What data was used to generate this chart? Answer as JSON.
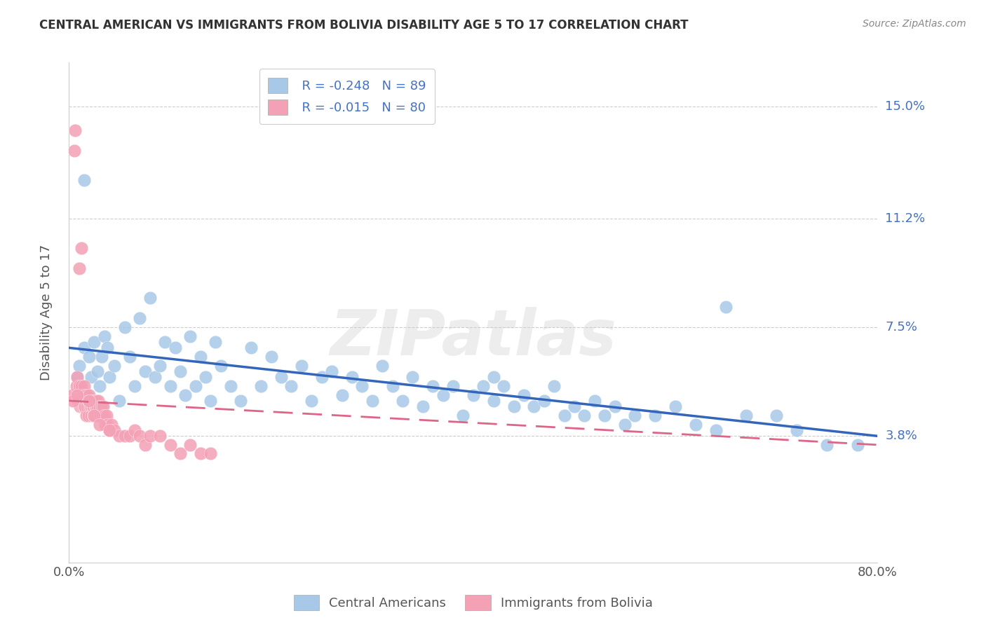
{
  "title": "CENTRAL AMERICAN VS IMMIGRANTS FROM BOLIVIA DISABILITY AGE 5 TO 17 CORRELATION CHART",
  "source": "Source: ZipAtlas.com",
  "ylabel": "Disability Age 5 to 17",
  "ytick_labels": [
    "3.8%",
    "7.5%",
    "11.2%",
    "15.0%"
  ],
  "ytick_values": [
    3.8,
    7.5,
    11.2,
    15.0
  ],
  "xlim": [
    0.0,
    80.0
  ],
  "ylim": [
    -0.5,
    16.5
  ],
  "legend_blue_r": "R = -0.248",
  "legend_blue_n": "N = 89",
  "legend_pink_r": "R = -0.015",
  "legend_pink_n": "N = 80",
  "legend_label_blue": "Central Americans",
  "legend_label_pink": "Immigrants from Bolivia",
  "blue_color": "#a8c8e8",
  "pink_color": "#f4a0b5",
  "blue_line_color": "#3366bb",
  "pink_line_color": "#dd6688",
  "watermark": "ZIPatlas",
  "blue_scatter_x": [
    0.8,
    1.0,
    1.2,
    1.5,
    1.8,
    2.0,
    2.2,
    2.5,
    2.8,
    3.0,
    3.2,
    3.5,
    3.8,
    4.0,
    4.5,
    5.0,
    5.5,
    6.0,
    6.5,
    7.0,
    7.5,
    8.0,
    8.5,
    9.0,
    9.5,
    10.0,
    10.5,
    11.0,
    11.5,
    12.0,
    12.5,
    13.0,
    13.5,
    14.0,
    14.5,
    15.0,
    16.0,
    17.0,
    18.0,
    19.0,
    20.0,
    21.0,
    22.0,
    23.0,
    24.0,
    25.0,
    26.0,
    27.0,
    28.0,
    29.0,
    30.0,
    31.0,
    32.0,
    33.0,
    34.0,
    35.0,
    36.0,
    37.0,
    38.0,
    39.0,
    40.0,
    41.0,
    42.0,
    43.0,
    44.0,
    45.0,
    46.0,
    47.0,
    48.0,
    49.0,
    50.0,
    51.0,
    52.0,
    53.0,
    54.0,
    55.0,
    56.0,
    58.0,
    60.0,
    62.0,
    64.0,
    65.0,
    67.0,
    70.0,
    72.0,
    75.0,
    78.0,
    1.5,
    42.0
  ],
  "blue_scatter_y": [
    5.8,
    6.2,
    5.5,
    6.8,
    5.2,
    6.5,
    5.8,
    7.0,
    6.0,
    5.5,
    6.5,
    7.2,
    6.8,
    5.8,
    6.2,
    5.0,
    7.5,
    6.5,
    5.5,
    7.8,
    6.0,
    8.5,
    5.8,
    6.2,
    7.0,
    5.5,
    6.8,
    6.0,
    5.2,
    7.2,
    5.5,
    6.5,
    5.8,
    5.0,
    7.0,
    6.2,
    5.5,
    5.0,
    6.8,
    5.5,
    6.5,
    5.8,
    5.5,
    6.2,
    5.0,
    5.8,
    6.0,
    5.2,
    5.8,
    5.5,
    5.0,
    6.2,
    5.5,
    5.0,
    5.8,
    4.8,
    5.5,
    5.2,
    5.5,
    4.5,
    5.2,
    5.5,
    5.0,
    5.5,
    4.8,
    5.2,
    4.8,
    5.0,
    5.5,
    4.5,
    4.8,
    4.5,
    5.0,
    4.5,
    4.8,
    4.2,
    4.5,
    4.5,
    4.8,
    4.2,
    4.0,
    8.2,
    4.5,
    4.5,
    4.0,
    3.5,
    3.5,
    12.5,
    5.8
  ],
  "pink_scatter_x": [
    0.3,
    0.5,
    0.6,
    0.7,
    0.8,
    0.9,
    1.0,
    1.0,
    1.1,
    1.2,
    1.2,
    1.3,
    1.3,
    1.4,
    1.4,
    1.5,
    1.5,
    1.5,
    1.6,
    1.6,
    1.7,
    1.7,
    1.8,
    1.8,
    1.9,
    1.9,
    2.0,
    2.0,
    2.0,
    2.1,
    2.1,
    2.2,
    2.2,
    2.3,
    2.3,
    2.4,
    2.4,
    2.5,
    2.5,
    2.6,
    2.6,
    2.7,
    2.7,
    2.8,
    2.8,
    2.9,
    3.0,
    3.0,
    3.1,
    3.2,
    3.3,
    3.4,
    3.5,
    3.6,
    3.7,
    3.8,
    4.0,
    4.2,
    4.5,
    5.0,
    5.5,
    6.0,
    6.5,
    7.0,
    7.5,
    8.0,
    9.0,
    10.0,
    11.0,
    12.0,
    13.0,
    14.0,
    1.0,
    1.2,
    2.0,
    2.5,
    3.0,
    4.0,
    0.4,
    0.8
  ],
  "pink_scatter_y": [
    5.2,
    13.5,
    14.2,
    5.5,
    5.8,
    5.0,
    5.5,
    5.0,
    4.8,
    5.5,
    5.2,
    5.0,
    4.8,
    5.2,
    4.8,
    5.0,
    4.8,
    5.5,
    4.8,
    5.2,
    5.0,
    4.5,
    5.2,
    4.8,
    5.0,
    4.5,
    5.2,
    4.8,
    5.0,
    4.8,
    5.0,
    4.8,
    4.5,
    4.8,
    5.0,
    4.5,
    4.8,
    5.0,
    4.5,
    4.8,
    4.5,
    5.0,
    4.8,
    4.5,
    4.8,
    5.0,
    4.5,
    4.8,
    4.5,
    4.8,
    4.5,
    4.8,
    4.5,
    4.2,
    4.5,
    4.2,
    4.0,
    4.2,
    4.0,
    3.8,
    3.8,
    3.8,
    4.0,
    3.8,
    3.5,
    3.8,
    3.8,
    3.5,
    3.2,
    3.5,
    3.2,
    3.2,
    9.5,
    10.2,
    5.0,
    4.5,
    4.2,
    4.0,
    5.0,
    5.2
  ],
  "blue_trendline_x": [
    0.0,
    80.0
  ],
  "blue_trendline_y": [
    6.8,
    3.8
  ],
  "pink_trendline_x": [
    0.0,
    80.0
  ],
  "pink_trendline_y": [
    5.0,
    3.5
  ],
  "grid_color": "#cccccc",
  "spine_color": "#cccccc",
  "title_fontsize": 12,
  "tick_fontsize": 13,
  "ylabel_fontsize": 13,
  "label_color": "#4472c4",
  "title_color": "#333333",
  "source_color": "#888888"
}
